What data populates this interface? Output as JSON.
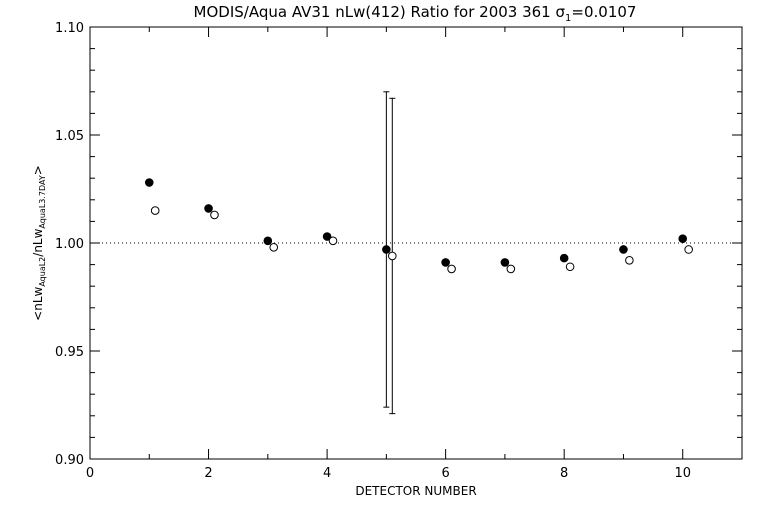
{
  "chart_data": {
    "type": "scatter",
    "title": "MODIS/Aqua AV31 nLw(412) Ratio for 2003 361 σ₁=0.0107",
    "title_parts": {
      "main": "MODIS/Aqua AV31 nLw(412) Ratio for 2003 361 σ",
      "subscript": "1",
      "suffix": "=0.0107"
    },
    "xlabel": "DETECTOR NUMBER",
    "ylabel": "<nLw_AquaL2/nLw_AquaL3.7DAY>",
    "ylabel_parts": {
      "pre": "<nLw",
      "sub1": "AquaL2",
      "mid": "/nLw",
      "sub2": "AquaL3.7DAY",
      "post": ">"
    },
    "xlim": [
      0,
      11
    ],
    "ylim": [
      0.9,
      1.1
    ],
    "x_ticks": [
      "0",
      "2",
      "4",
      "6",
      "8",
      "10"
    ],
    "y_ticks": [
      "0.90",
      "0.95",
      "1.00",
      "1.05",
      "1.10"
    ],
    "reference_line": 1.0,
    "grid": false,
    "series": [
      {
        "marker": "filled-circle",
        "x": [
          1,
          2,
          3,
          4,
          5,
          6,
          7,
          8,
          9,
          10
        ],
        "y": [
          1.028,
          1.016,
          1.001,
          1.003,
          0.997,
          0.991,
          0.991,
          0.993,
          0.997,
          1.002
        ]
      },
      {
        "marker": "open-circle",
        "x": [
          1.1,
          2.1,
          3.1,
          4.1,
          5.1,
          6.1,
          7.1,
          8.1,
          9.1,
          10.1
        ],
        "y": [
          1.015,
          1.013,
          0.998,
          1.001,
          0.994,
          0.988,
          0.988,
          0.989,
          0.992,
          0.997
        ]
      }
    ],
    "error_bars": [
      {
        "x": 5.0,
        "low": 0.924,
        "high": 1.07
      },
      {
        "x": 5.1,
        "low": 0.921,
        "high": 1.067
      }
    ]
  }
}
